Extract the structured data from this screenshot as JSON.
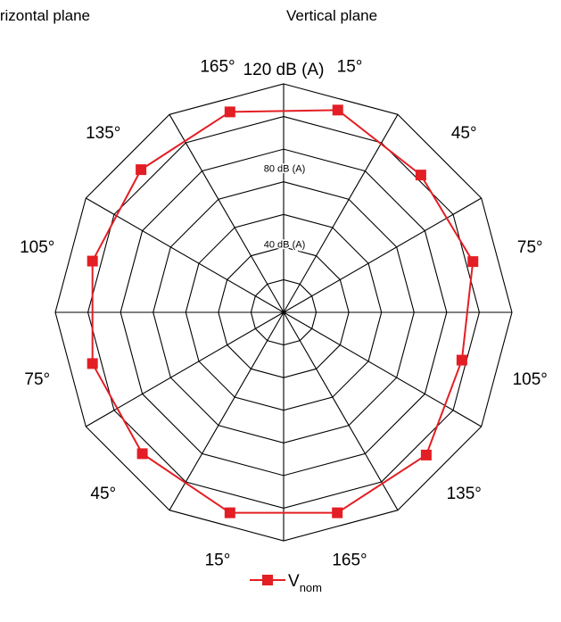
{
  "headers": {
    "left": "Horizontal plane",
    "right": "Vertical plane"
  },
  "chart_data": {
    "type": "radar",
    "radial_unit_labels": [
      "40 dB (A)",
      "80 dB (A)",
      "120 dB (A)"
    ],
    "r_max": 120,
    "ring_count": 7,
    "spokes": 12,
    "grid": true,
    "angle_labels_right": [
      "15°",
      "45°",
      "75°",
      "105°",
      "135°",
      "165°"
    ],
    "angle_labels_left": [
      "165°",
      "135°",
      "105°",
      "75°",
      "45°",
      "15°"
    ],
    "series": [
      {
        "name": "V_nom",
        "color": "#e31e24",
        "values": [
          {
            "angle": 15,
            "r": 110
          },
          {
            "angle": 45,
            "r": 102
          },
          {
            "angle": 75,
            "r": 103
          },
          {
            "angle": 105,
            "r": 97
          },
          {
            "angle": 135,
            "r": 106
          },
          {
            "angle": 165,
            "r": 109
          },
          {
            "angle": 195,
            "r": 109
          },
          {
            "angle": 225,
            "r": 105
          },
          {
            "angle": 255,
            "r": 104
          },
          {
            "angle": 285,
            "r": 104
          },
          {
            "angle": 315,
            "r": 106
          },
          {
            "angle": 345,
            "r": 109
          }
        ]
      }
    ],
    "legend": {
      "position": "bottom-center",
      "label_main": "V",
      "label_sub": "nom"
    }
  }
}
